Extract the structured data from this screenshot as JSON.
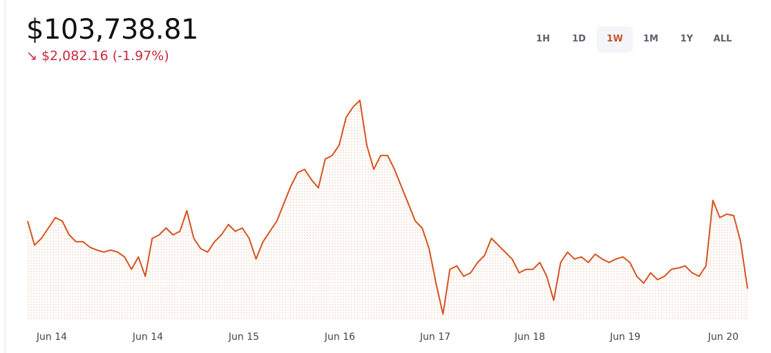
{
  "header": {
    "price": "$103,738.81",
    "change": "$2,082.16 (-1.97%)",
    "ranges": [
      "1H",
      "1D",
      "1W",
      "1M",
      "1Y",
      "ALL"
    ],
    "active_range": 2
  },
  "chart_data": {
    "type": "line",
    "color": "#d4521e",
    "fill": true,
    "x_labels": [
      "Jun 14",
      "Jun 14",
      "Jun 15",
      "Jun 16",
      "Jun 17",
      "Jun 18",
      "Jun 19",
      "Jun 20"
    ],
    "ylim": [
      102800,
      109650
    ],
    "values": [
      105821,
      105078,
      105290,
      105609,
      105928,
      105821,
      105396,
      105184,
      105184,
      105014,
      104929,
      104865,
      104929,
      104865,
      104716,
      104334,
      104716,
      104121,
      105290,
      105396,
      105609,
      105396,
      105503,
      106140,
      105290,
      104971,
      104865,
      105184,
      105396,
      105715,
      105503,
      105609,
      105290,
      104653,
      105184,
      105503,
      105821,
      106353,
      106884,
      107309,
      107415,
      107096,
      106841,
      107734,
      107840,
      108159,
      109009,
      109328,
      109540,
      108159,
      107415,
      107840,
      107840,
      107415,
      106884,
      106353,
      105821,
      105609,
      104971,
      103909,
      102953,
      104334,
      104440,
      104121,
      104228,
      104546,
      104759,
      105290,
      105078,
      104865,
      104653,
      104228,
      104334,
      104334,
      104546,
      104121,
      103378,
      104546,
      104865,
      104653,
      104716,
      104546,
      104801,
      104653,
      104546,
      104653,
      104716,
      104546,
      104121,
      103909,
      104228,
      104015,
      104121,
      104334,
      104376,
      104440,
      104228,
      104121,
      104440,
      106459,
      105928,
      106034,
      105991,
      105184,
      103738.81
    ]
  }
}
